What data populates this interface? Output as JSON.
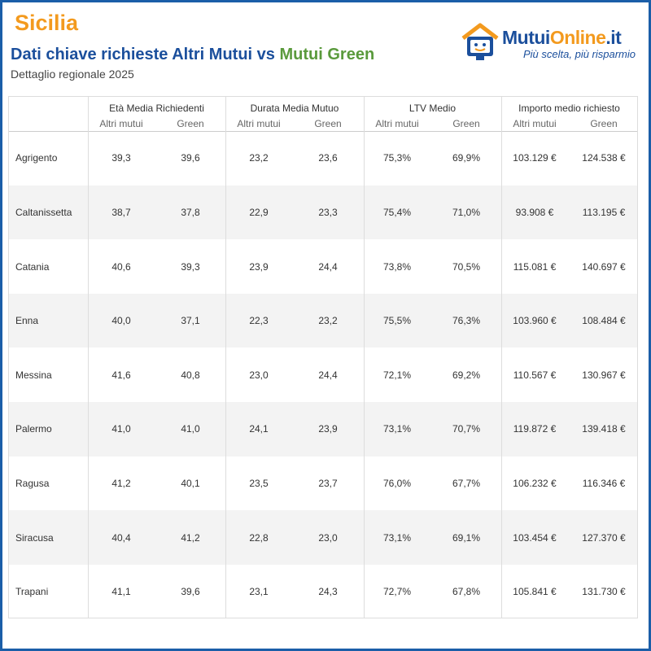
{
  "header": {
    "region": "Sicilia",
    "title_start": "Dati chiave richieste Altri Mutui vs",
    "title_green": "Mutui Green",
    "subtitle": "Dettaglio regionale 2025"
  },
  "logo": {
    "brand_a": "Mutui",
    "brand_b": "Online",
    "brand_c": ".it",
    "tagline": "Più scelta, più risparmio"
  },
  "table": {
    "groups": [
      "Età Media Richiedenti",
      "Durata Media Mutuo",
      "LTV Medio",
      "Importo medio richiesto"
    ],
    "subheaders": [
      "Altri mutui",
      "Green",
      "Altri mutui",
      "Green",
      "Altri mutui",
      "Green",
      "Altri mutui",
      "Green"
    ],
    "rows": [
      [
        "Agrigento",
        "39,3",
        "39,6",
        "23,2",
        "23,6",
        "75,3%",
        "69,9%",
        "103.129 €",
        "124.538 €"
      ],
      [
        "Caltanissetta",
        "38,7",
        "37,8",
        "22,9",
        "23,3",
        "75,4%",
        "71,0%",
        "93.908 €",
        "113.195 €"
      ],
      [
        "Catania",
        "40,6",
        "39,3",
        "23,9",
        "24,4",
        "73,8%",
        "70,5%",
        "115.081 €",
        "140.697 €"
      ],
      [
        "Enna",
        "40,0",
        "37,1",
        "22,3",
        "23,2",
        "75,5%",
        "76,3%",
        "103.960 €",
        "108.484 €"
      ],
      [
        "Messina",
        "41,6",
        "40,8",
        "23,0",
        "24,4",
        "72,1%",
        "69,2%",
        "110.567 €",
        "130.967 €"
      ],
      [
        "Palermo",
        "41,0",
        "41,0",
        "24,1",
        "23,9",
        "73,1%",
        "70,7%",
        "119.872 €",
        "139.418 €"
      ],
      [
        "Ragusa",
        "41,2",
        "40,1",
        "23,5",
        "23,7",
        "76,0%",
        "67,7%",
        "106.232 €",
        "116.346 €"
      ],
      [
        "Siracusa",
        "40,4",
        "41,2",
        "22,8",
        "23,0",
        "73,1%",
        "69,1%",
        "103.454 €",
        "127.370 €"
      ],
      [
        "Trapani",
        "41,1",
        "39,6",
        "23,1",
        "24,3",
        "72,7%",
        "67,8%",
        "105.841 €",
        "131.730 €"
      ]
    ]
  }
}
